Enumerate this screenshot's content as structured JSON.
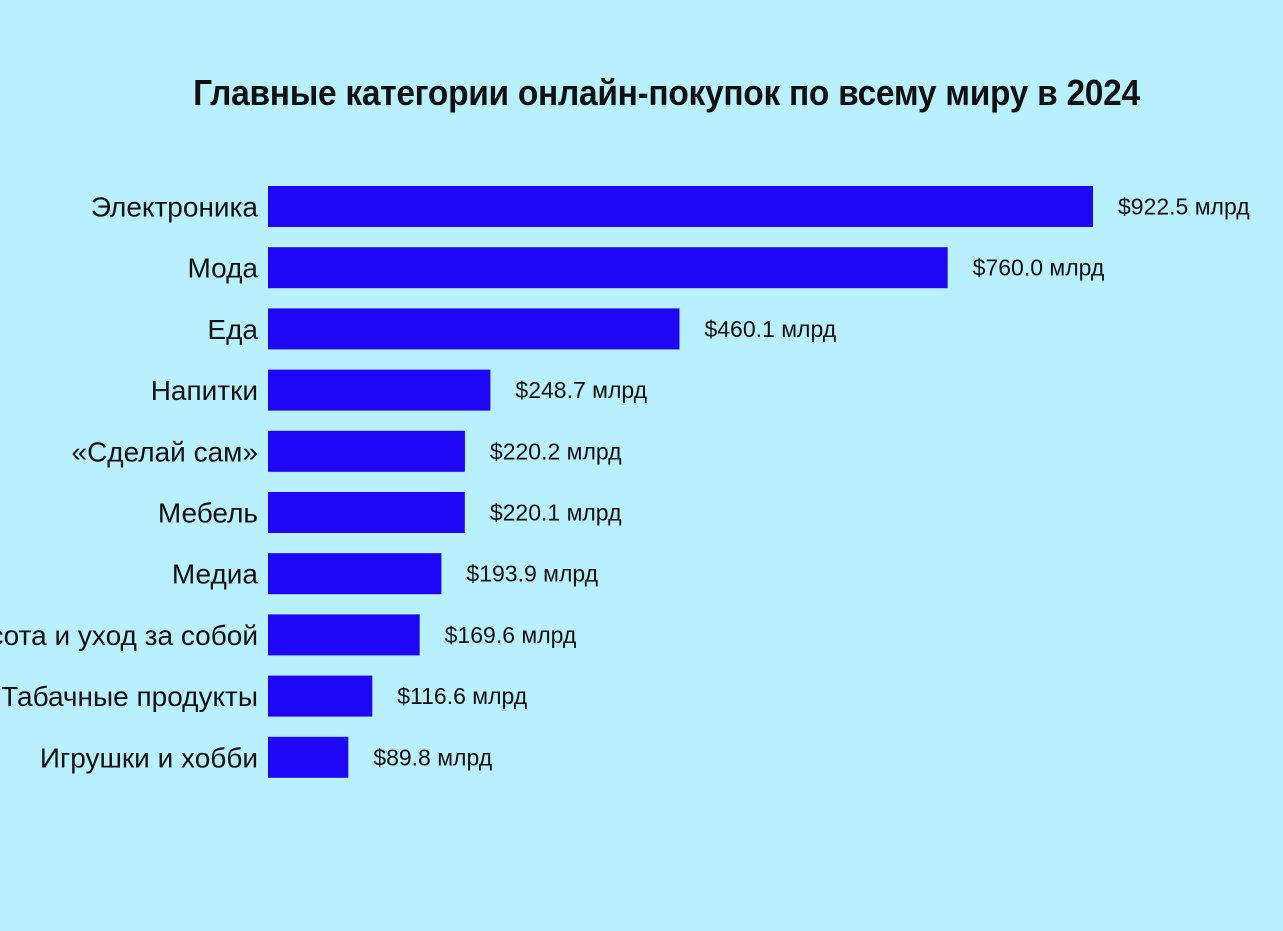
{
  "chart_data": {
    "type": "bar",
    "orientation": "horizontal",
    "title": "Главные категории онлайн-покупок по всему миру в 2024",
    "categories": [
      "Электроника",
      "Мода",
      "Еда",
      "Напитки",
      "«Сделай сам»",
      "Мебель",
      "Медиа",
      "Красота и уход за собой",
      "Табачные продукты",
      "Игрушки и хобби"
    ],
    "values": [
      922.5,
      760.0,
      460.1,
      248.7,
      220.2,
      220.1,
      193.9,
      169.6,
      116.6,
      89.8
    ],
    "value_labels": [
      "$922.5  млрд",
      "$760.0 млрд",
      "$460.1 млрд",
      "$248.7 млрд",
      "$220.2  млрд",
      "$220.1  млрд",
      "$193.9  млрд",
      "$169.6  млрд",
      "$116.6  млрд",
      "$89.8  млрд"
    ],
    "xlim": [
      0,
      922.5
    ],
    "grid": false,
    "legend": "none",
    "bar_color": "#1f06f5",
    "background_color": "#b9f0fd"
  }
}
